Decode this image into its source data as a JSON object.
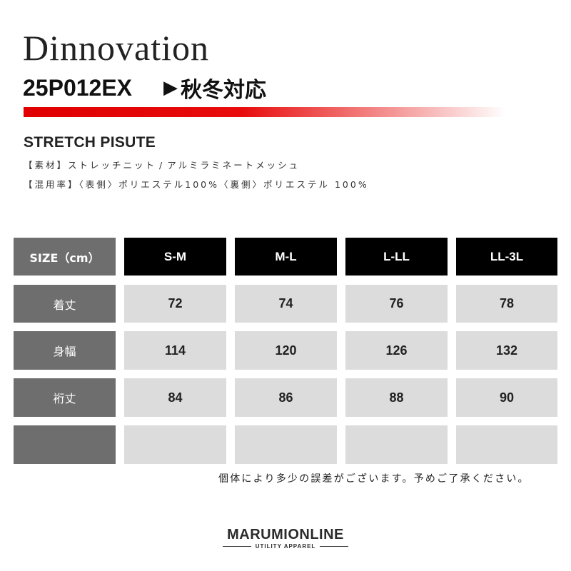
{
  "brand": "Dinnovation",
  "model_code": "25P012EX",
  "season_arrow": "▶",
  "season": "秋冬対応",
  "product_name": "STRETCH PISUTE",
  "material": {
    "label": "【素材】",
    "value": "ストレッチニット",
    "separator": "/",
    "value2": "アルミラミネートメッシュ"
  },
  "blend": {
    "label": "【混用率】",
    "value": "〈表側〉ポリエステル100%〈裏側〉ポリエステル 100%"
  },
  "size_table": {
    "header_label": "SIZE（cm）",
    "sizes": [
      "S-M",
      "M-L",
      "L-LL",
      "LL-3L"
    ],
    "rows": [
      {
        "label": "着丈",
        "values": [
          "72",
          "74",
          "76",
          "78"
        ]
      },
      {
        "label": "身幅",
        "values": [
          "114",
          "120",
          "126",
          "132"
        ]
      },
      {
        "label": "裄丈",
        "values": [
          "84",
          "86",
          "88",
          "90"
        ]
      },
      {
        "label": "",
        "values": [
          "",
          "",
          "",
          ""
        ]
      }
    ]
  },
  "note": "個体により多少の誤差がございます。予めご了承ください。",
  "footer_logo": {
    "main": "MARUMIONLINE",
    "sub": "UTILITY APPAREL"
  },
  "colors": {
    "accent_red": "#e00000",
    "header_black": "#000000",
    "label_gray": "#6e6e6e",
    "value_gray": "#dcdcdc"
  }
}
